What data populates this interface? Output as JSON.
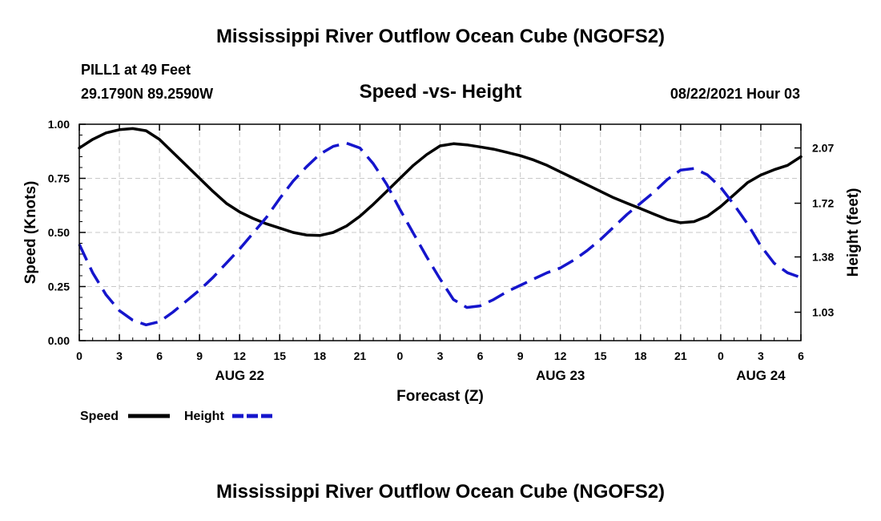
{
  "header": {
    "title_top": "Mississippi River Outflow Ocean Cube (NGOFS2)",
    "title_bottom": "Mississippi River Outflow Ocean Cube (NGOFS2)",
    "station": "PILL1 at 49 Feet",
    "coords": "29.1790N  89.2590W",
    "subtitle": "Speed -vs- Height",
    "datetime": "08/22/2021 Hour 03"
  },
  "chart_data": {
    "type": "line",
    "title": "Speed -vs- Height",
    "xlabel": "Forecast (Z)",
    "ylabel": "Speed (Knots)",
    "y2label": "Height (feet)",
    "x_range_hours": [
      0,
      54
    ],
    "ylim": [
      0.0,
      1.0
    ],
    "y2lim": [
      0.85,
      2.22
    ],
    "y_ticks": [
      "0.00",
      "0.25",
      "0.50",
      "0.75",
      "1.00"
    ],
    "y2_ticks": [
      "1.03",
      "1.38",
      "1.72",
      "2.07"
    ],
    "x_tick_labels": [
      "0",
      "3",
      "6",
      "9",
      "12",
      "15",
      "18",
      "21",
      "0",
      "3",
      "6",
      "9",
      "12",
      "15",
      "18",
      "21",
      "0",
      "3",
      "6"
    ],
    "date_labels": [
      {
        "label": "AUG 22",
        "hour": 12
      },
      {
        "label": "AUG 23",
        "hour": 36
      },
      {
        "label": "AUG 24",
        "hour": 51
      }
    ],
    "grid": true,
    "legend": [
      {
        "name": "Speed",
        "color": "#000000",
        "style": "solid"
      },
      {
        "name": "Height",
        "color": "#1515cc",
        "style": "dashed"
      }
    ],
    "series": [
      {
        "name": "Speed",
        "axis": "left",
        "color": "#000000",
        "x": [
          0,
          1,
          2,
          3,
          4,
          5,
          6,
          7,
          8,
          9,
          10,
          11,
          12,
          13,
          14,
          15,
          16,
          17,
          18,
          19,
          20,
          21,
          22,
          23,
          24,
          25,
          26,
          27,
          28,
          29,
          30,
          31,
          32,
          33,
          34,
          35,
          36,
          37,
          38,
          39,
          40,
          41,
          42,
          43,
          44,
          45,
          46,
          47,
          48,
          49,
          50,
          51,
          52,
          53,
          54
        ],
        "values": [
          0.89,
          0.93,
          0.96,
          0.975,
          0.98,
          0.97,
          0.93,
          0.87,
          0.81,
          0.75,
          0.69,
          0.635,
          0.595,
          0.565,
          0.54,
          0.52,
          0.5,
          0.488,
          0.486,
          0.5,
          0.53,
          0.575,
          0.63,
          0.69,
          0.75,
          0.81,
          0.86,
          0.9,
          0.91,
          0.905,
          0.895,
          0.885,
          0.87,
          0.855,
          0.835,
          0.81,
          0.78,
          0.75,
          0.72,
          0.69,
          0.66,
          0.635,
          0.61,
          0.585,
          0.56,
          0.545,
          0.55,
          0.575,
          0.62,
          0.675,
          0.73,
          0.765,
          0.79,
          0.81,
          0.85
        ]
      },
      {
        "name": "Height",
        "axis": "right",
        "color": "#1515cc",
        "x": [
          0,
          1,
          2,
          3,
          4,
          5,
          6,
          7,
          8,
          9,
          10,
          11,
          12,
          13,
          14,
          15,
          16,
          17,
          18,
          19,
          20,
          21,
          22,
          23,
          24,
          25,
          26,
          27,
          28,
          29,
          30,
          31,
          32,
          33,
          34,
          35,
          36,
          37,
          38,
          39,
          40,
          41,
          42,
          43,
          44,
          45,
          46,
          47,
          48,
          49,
          50,
          51,
          52,
          53,
          54
        ],
        "values": [
          1.46,
          1.28,
          1.14,
          1.04,
          0.98,
          0.95,
          0.97,
          1.03,
          1.1,
          1.17,
          1.25,
          1.34,
          1.43,
          1.53,
          1.63,
          1.75,
          1.86,
          1.95,
          2.03,
          2.08,
          2.1,
          2.07,
          1.97,
          1.84,
          1.68,
          1.53,
          1.38,
          1.24,
          1.11,
          1.06,
          1.07,
          1.11,
          1.16,
          1.2,
          1.24,
          1.28,
          1.31,
          1.36,
          1.42,
          1.49,
          1.57,
          1.65,
          1.72,
          1.79,
          1.87,
          1.93,
          1.94,
          1.9,
          1.82,
          1.71,
          1.59,
          1.45,
          1.34,
          1.28,
          1.25
        ]
      }
    ]
  }
}
